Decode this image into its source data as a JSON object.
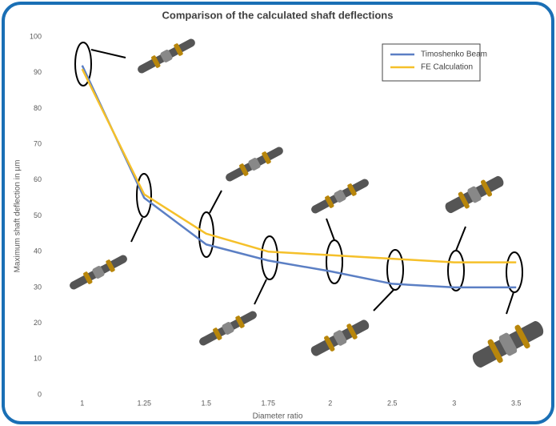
{
  "chart_data": {
    "type": "line",
    "title": "Comparison of the calculated shaft deflections",
    "x_label": "Diameter ratio",
    "y_label": "Maximum shaft deflection in µm",
    "categories": [
      "1",
      "1.25",
      "1.5",
      "1.75",
      "2",
      "2.5",
      "3",
      "3.5"
    ],
    "series": [
      {
        "name": "Timoshenko Beam",
        "color": "#5b7fc4",
        "values": [
          92,
          55,
          42,
          37.5,
          34.5,
          31,
          30,
          30
        ]
      },
      {
        "name": "FE Calculation",
        "color": "#f5c02a",
        "values": [
          91,
          56,
          45,
          40,
          39,
          38,
          37,
          37
        ]
      }
    ],
    "ylim": [
      0,
      100
    ],
    "yticks": [
      0,
      10,
      20,
      30,
      40,
      50,
      60,
      70,
      80,
      90,
      100
    ],
    "grid": false,
    "legend": "top-right"
  }
}
